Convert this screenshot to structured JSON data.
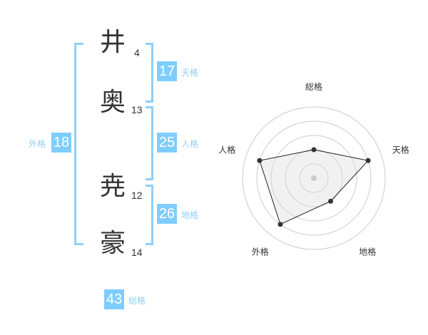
{
  "name": [
    {
      "char": "井",
      "strokes": "4"
    },
    {
      "char": "奥",
      "strokes": "13"
    },
    {
      "char": "尭",
      "strokes": "12"
    },
    {
      "char": "豪",
      "strokes": "14"
    }
  ],
  "fortunes": {
    "tenkaku": {
      "value": "17",
      "label": "天格"
    },
    "jinkaku": {
      "value": "25",
      "label": "人格"
    },
    "chikaku": {
      "value": "26",
      "label": "地格"
    },
    "gaikaku": {
      "value": "18",
      "label": "外格"
    },
    "soukaku": {
      "value": "43",
      "label": "総格"
    }
  },
  "colors": {
    "accent": "#7fcdff",
    "bracket": "#8fd0fa"
  },
  "chart_data": {
    "type": "radar",
    "categories": [
      "総格",
      "天格",
      "地格",
      "外格",
      "人格"
    ],
    "values": [
      2,
      4,
      2,
      4,
      4
    ],
    "range": [
      0,
      5
    ],
    "rings": 5
  }
}
